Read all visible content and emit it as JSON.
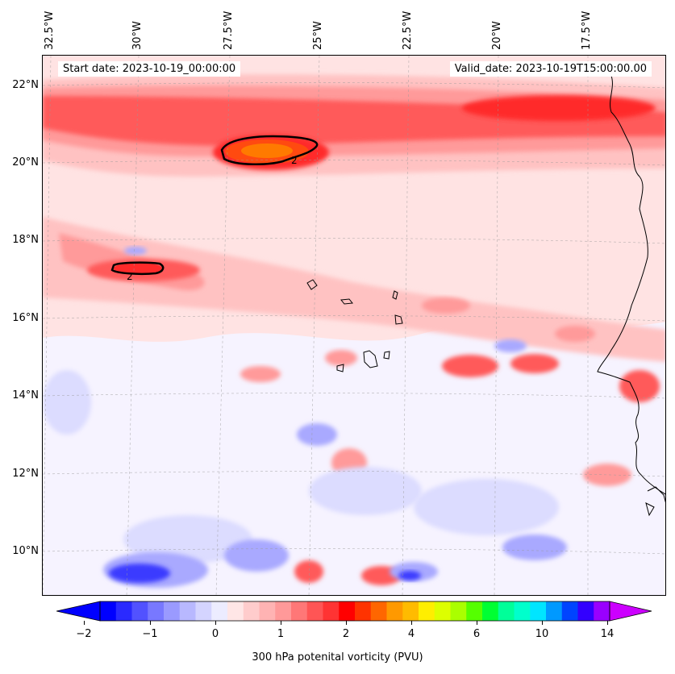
{
  "header": {
    "start_date": "Start date: 2023-10-19_00:00:00",
    "valid_date": "Valid_date: 2023-10-19T15:00:00.00"
  },
  "longitude_labels": [
    "32.5°W",
    "30°W",
    "27.5°W",
    "25°W",
    "22.5°W",
    "20°W",
    "17.5°W"
  ],
  "latitude_labels": [
    "22°N",
    "20°N",
    "18°N",
    "16°N",
    "14°N",
    "12°N",
    "10°N"
  ],
  "contours": [
    {
      "level_label": "2"
    },
    {
      "level_label": "2"
    }
  ],
  "colorbar": {
    "title": "300 hPa potenital vorticity (PVU)",
    "tick_labels": [
      "−2",
      "−1",
      "0",
      "1",
      "2",
      "4",
      "6",
      "10",
      "14"
    ],
    "colors": [
      "#0000ff",
      "#2a2aff",
      "#5252ff",
      "#7878ff",
      "#9a9aff",
      "#b8b8ff",
      "#d4d4ff",
      "#ececff",
      "#ffe6e6",
      "#ffcccc",
      "#ffb3b3",
      "#ff9999",
      "#ff7777",
      "#ff5555",
      "#ff3333",
      "#ff0000",
      "#ff3300",
      "#ff6600",
      "#ff9900",
      "#ffbb00",
      "#ffee00",
      "#ddff00",
      "#aaff00",
      "#55ff00",
      "#00ff33",
      "#00ff99",
      "#00ffcc",
      "#00e5ff",
      "#0099ff",
      "#0044ff",
      "#3300ff",
      "#9900ff"
    ],
    "under_color": "#0000ff",
    "over_color": "#cc00ff"
  },
  "field_colors": {
    "background": "#f6f3ff",
    "light_pink": "#ffe3e3",
    "pink": "#ffc2c2",
    "salmon": "#ff9a9a",
    "red": "#ff5a5a",
    "strong_red": "#ff2a2a",
    "orange_red": "#ff4a10",
    "orange": "#ff7a00",
    "light_blue": "#dcdcff",
    "blue": "#a9a9ff",
    "deep_blue": "#3b3bff",
    "coast": "#000000"
  }
}
